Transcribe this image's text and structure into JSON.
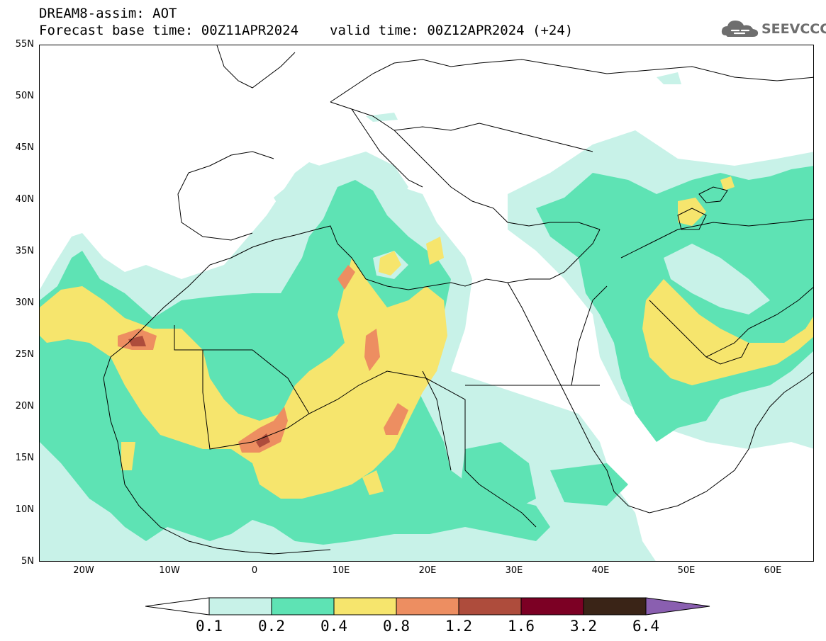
{
  "header": {
    "line1": "DREAM8-assim: AOT",
    "base": "Forecast base time: 00Z11APR2024",
    "valid": "valid time: 00Z12APR2024 (+24)"
  },
  "logo": {
    "text": "SEEVCCC",
    "icon": "cloud-icon"
  },
  "axes": {
    "lat_labels": [
      "55N",
      "50N",
      "45N",
      "40N",
      "35N",
      "30N",
      "25N",
      "20N",
      "15N",
      "10N",
      "5N"
    ],
    "lon_labels": [
      "20W",
      "10W",
      "0",
      "10E",
      "20E",
      "30E",
      "40E",
      "50E",
      "60E"
    ],
    "lat_range": [
      5,
      55
    ],
    "lon_range": [
      -25,
      65
    ]
  },
  "colorbar": {
    "labels": [
      "0.1",
      "0.2",
      "0.4",
      "0.8",
      "1.2",
      "1.6",
      "3.2",
      "6.4"
    ],
    "colors": [
      "#c8f2e8",
      "#5ee3b4",
      "#f6e56d",
      "#ed8e61",
      "#ae4c3c",
      "#7c0024",
      "#3a2417",
      "#8a5fb0"
    ]
  },
  "colors": {
    "aot_0_1": "#c8f2e8",
    "aot_0_2": "#5ee3b4",
    "aot_0_4": "#f6e56d",
    "aot_0_8": "#ed8e61",
    "aot_1_2": "#ae4c3c"
  }
}
